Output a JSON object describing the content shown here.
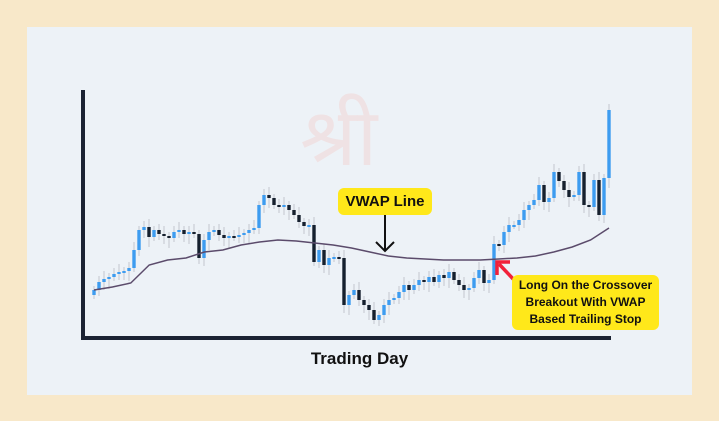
{
  "chart_data": {
    "type": "candlestick",
    "title": "",
    "xlabel": "Trading Day",
    "ylabel": "",
    "grid": false,
    "ylim": [
      0,
      250
    ],
    "closes": [
      50,
      58,
      61,
      63,
      66,
      68,
      69,
      72,
      90,
      110,
      113,
      103,
      110,
      106,
      104,
      102,
      108,
      110,
      106,
      108,
      106,
      82,
      100,
      108,
      110,
      105,
      102,
      104,
      103,
      105,
      107,
      110,
      112,
      135,
      145,
      142,
      135,
      133,
      135,
      130,
      125,
      118,
      114,
      115,
      78,
      90,
      75,
      82,
      83,
      82,
      35,
      45,
      50,
      40,
      35,
      30,
      20,
      25,
      35,
      40,
      42,
      48,
      55,
      50,
      55,
      60,
      58,
      63,
      58,
      65,
      62,
      68,
      60,
      55,
      50,
      52,
      62,
      70,
      57,
      60,
      96,
      95,
      108,
      115,
      115,
      120,
      130,
      135,
      140,
      155,
      138,
      142,
      168,
      159,
      150,
      143,
      145,
      168,
      135,
      133,
      160,
      125,
      162,
      230
    ],
    "first_open": 45,
    "vwap": [
      50,
      53,
      57,
      75,
      80,
      82,
      88,
      90,
      95,
      98,
      100,
      99,
      97,
      95,
      92,
      88,
      84,
      82,
      81,
      80,
      80,
      80,
      81,
      82,
      84,
      88,
      93,
      100,
      112
    ],
    "colors": {
      "up": "#3d9cf0",
      "down": "#15202e",
      "vwap": "#5b4b6b",
      "axis": "#1b2333",
      "highlight": "#ffe81a",
      "arrow": "#f2213a"
    },
    "annotations": {
      "vwap_label": "VWAP Line",
      "signal_lines": [
        "Long On the Crossover",
        "Breakout With VWAP",
        "Based Trailing Stop"
      ]
    },
    "watermark": "श्री"
  }
}
